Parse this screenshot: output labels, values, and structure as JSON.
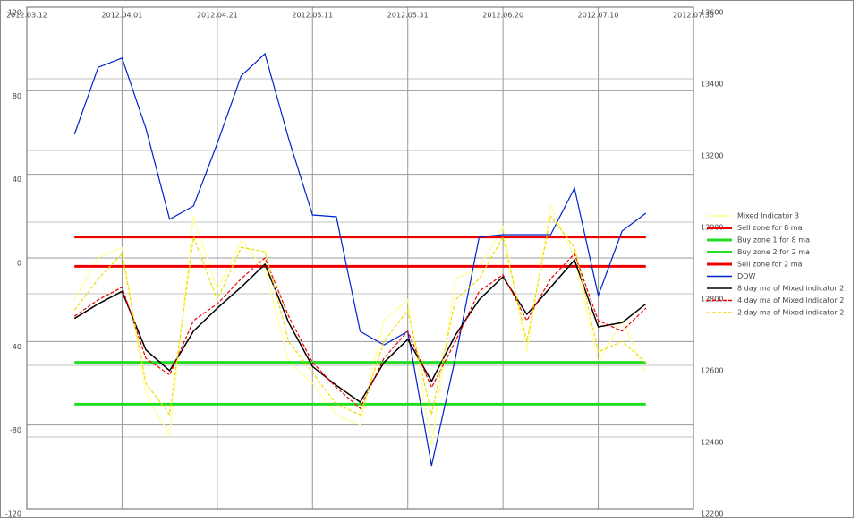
{
  "chart_data": {
    "type": "line",
    "x": [
      "2012.03.22",
      "2012.03.27",
      "2012.04.01",
      "2012.04.06",
      "2012.04.11",
      "2012.04.16",
      "2012.04.21",
      "2012.04.26",
      "2012.05.01",
      "2012.05.06",
      "2012.05.11",
      "2012.05.16",
      "2012.05.21",
      "2012.05.26",
      "2012.05.31",
      "2012.06.05",
      "2012.06.10",
      "2012.06.15",
      "2012.06.20",
      "2012.06.25",
      "2012.06.30",
      "2012.07.05",
      "2012.07.10",
      "2012.07.15",
      "2012.07.20"
    ],
    "xlim": [
      "2012.03.12",
      "2012.07.30"
    ],
    "xticks": [
      "2012.03.12",
      "2012.04.01",
      "2012.04.21",
      "2012.05.11",
      "2012.05.31",
      "2012.06.20",
      "2012.07.10",
      "2012.07.30"
    ],
    "ylim": [
      -120,
      120
    ],
    "yticks": [
      -120,
      -80,
      -40,
      0,
      40,
      80,
      120
    ],
    "y2lim": [
      12200,
      13600
    ],
    "y2ticks": [
      12200,
      12400,
      12600,
      12800,
      13000,
      13200,
      13400,
      13600
    ],
    "grid": true,
    "legend": "right",
    "series": [
      {
        "name": "Mixed Indicator 3",
        "color": "#ffff99",
        "values": [
          -20,
          0,
          5,
          -65,
          -85,
          20,
          -15,
          8,
          -5,
          -50,
          -60,
          -75,
          -80,
          -30,
          -20,
          -90,
          -10,
          -5,
          15,
          -45,
          25,
          0,
          -50,
          -30,
          -55
        ]
      },
      {
        "name": "Sell zone for 8 ma",
        "color": "#ee0000",
        "level": 10
      },
      {
        "name": "Buy zone 1 for 8 ma",
        "color": "#22dd22",
        "level": -50
      },
      {
        "name": "Buy zone 2 for 2 ma",
        "color": "#22dd22",
        "level": -70
      },
      {
        "name": "Sell zone for 2 ma",
        "color": "#ee0000",
        "level": -4
      },
      {
        "name": "DOW",
        "color": "#0022cc",
        "axis": "y2",
        "values": [
          13245,
          13432,
          13458,
          13262,
          13008,
          13045,
          13220,
          13408,
          13470,
          13232,
          13020,
          13015,
          12695,
          12657,
          12695,
          12320,
          12620,
          12958,
          12965,
          12965,
          12965,
          13095,
          12795,
          12975,
          13025
        ]
      },
      {
        "name": "8 day ma of Mixed indicator 2",
        "color": "#000000",
        "values": [
          -29,
          -22,
          -16,
          -44,
          -54,
          -35,
          -24,
          -14,
          -3,
          -31,
          -52,
          -61,
          -69,
          -50,
          -39,
          -59,
          -37,
          -20,
          -9,
          -27,
          -14,
          -1,
          -33,
          -31,
          -22
        ]
      },
      {
        "name": "4 day ma of Mixed indicator 2",
        "color": "#ee0000",
        "dashed": true,
        "values": [
          -28,
          -20,
          -14,
          -48,
          -56,
          -30,
          -22,
          -10,
          0,
          -28,
          -50,
          -62,
          -72,
          -48,
          -35,
          -62,
          -40,
          -16,
          -8,
          -30,
          -10,
          2,
          -30,
          -35,
          -24
        ]
      },
      {
        "name": "2 day ma of Mixed indicator 2",
        "color": "#eedd00",
        "dashed": true,
        "values": [
          -25,
          -10,
          2,
          -60,
          -75,
          10,
          -20,
          5,
          3,
          -40,
          -55,
          -70,
          -75,
          -40,
          -25,
          -75,
          -20,
          -10,
          10,
          -40,
          20,
          5,
          -45,
          -40,
          -50
        ]
      }
    ]
  }
}
